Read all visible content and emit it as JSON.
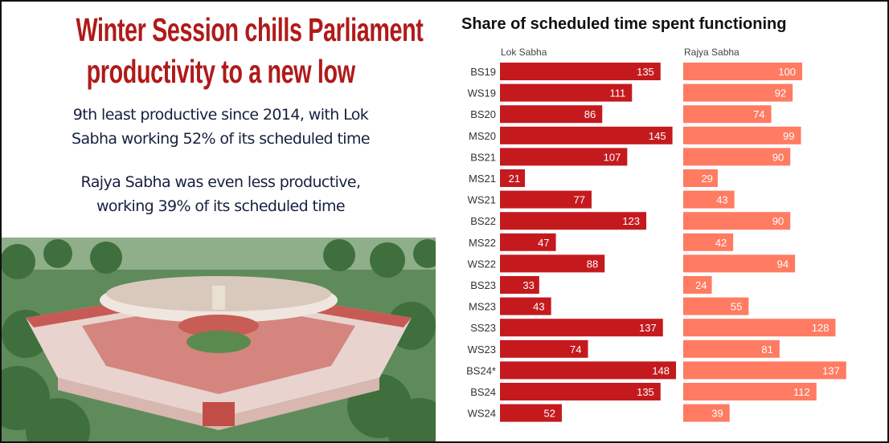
{
  "headline": {
    "line1": "Winter Session chills Parliament",
    "line2": "productivity to a new low"
  },
  "subtitle1": {
    "line1": "9th least productive since 2014, with Lok",
    "line2": "Sabha working 52% of its scheduled time"
  },
  "subtitle2": {
    "line1": "Rajya Sabha was even less productive,",
    "line2": "working 39% of its scheduled time"
  },
  "photo": {
    "subject": "parliament-building"
  },
  "colors": {
    "headline": "#b01a1a",
    "lok_sabha": "#c41a1e",
    "rajya_sabha": "#ff7b62",
    "subtitle": "#16203f"
  },
  "chart_data": {
    "type": "bar",
    "orientation": "horizontal",
    "title": "Share of scheduled time spent functioning",
    "categories": [
      "BS19",
      "WS19",
      "BS20",
      "MS20",
      "BS21",
      "MS21",
      "WS21",
      "BS22",
      "MS22",
      "WS22",
      "BS23",
      "MS23",
      "SS23",
      "WS23",
      "BS24*",
      "BS24",
      "WS24"
    ],
    "series": [
      {
        "name": "Lok Sabha",
        "values": [
          135,
          111,
          86,
          145,
          107,
          21,
          77,
          123,
          47,
          88,
          33,
          43,
          137,
          74,
          148,
          135,
          52
        ]
      },
      {
        "name": "Rajya Sabha",
        "values": [
          100,
          92,
          74,
          99,
          90,
          29,
          43,
          90,
          42,
          94,
          24,
          55,
          128,
          81,
          137,
          112,
          39
        ]
      }
    ],
    "xlim": [
      0,
      150
    ],
    "grid": false,
    "data_labels": true
  }
}
